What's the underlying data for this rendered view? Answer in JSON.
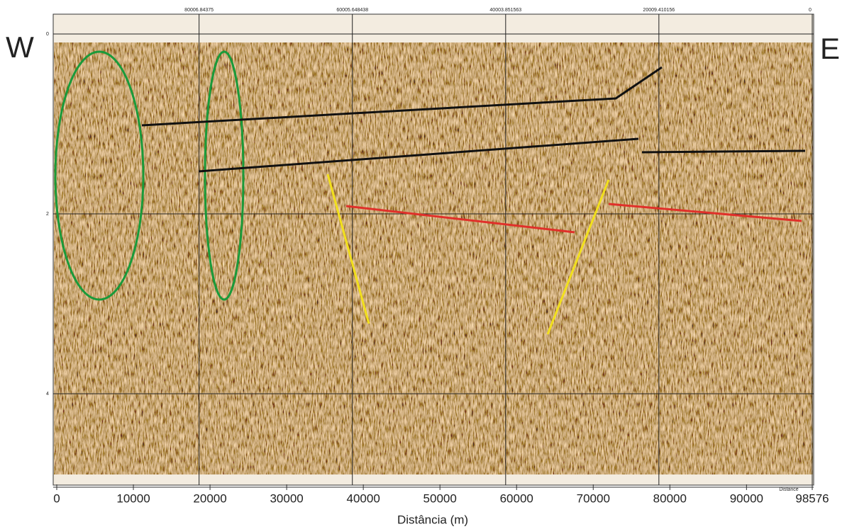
{
  "side_labels": {
    "west": "W",
    "east": "E"
  },
  "top_axis": {
    "ticks": [
      80006.84375,
      60005.648438,
      40003.851563,
      20009.410156,
      0
    ]
  },
  "left_axis": {
    "ticks": [
      0,
      2,
      4
    ]
  },
  "bottom_axis": {
    "ticks": [
      0,
      10000,
      20000,
      30000,
      40000,
      50000,
      60000,
      70000,
      80000,
      90000,
      98576
    ],
    "lim": [
      0,
      98576
    ],
    "corner_label": "Distance",
    "title": "Distância (m)"
  }
}
